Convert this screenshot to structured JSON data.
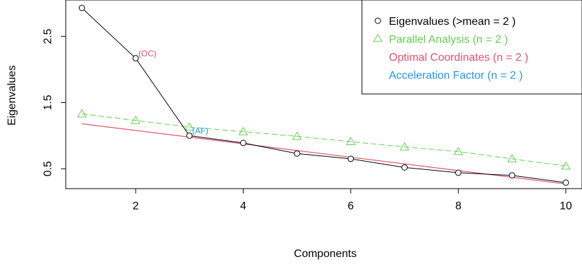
{
  "chart_data": {
    "type": "scatter",
    "xlabel": "Components",
    "ylabel": "Eigenvalues",
    "xlim": [
      0.7,
      10.3
    ],
    "ylim": [
      0.2,
      3.05
    ],
    "xticks": [
      "2",
      "4",
      "6",
      "8",
      "10"
    ],
    "yticks": [
      "0.5",
      "1.5",
      "2.5"
    ],
    "series": [
      {
        "name": "Eigenvalues (>mean  =  2 )",
        "marker": "circle",
        "color": "#000000",
        "x": [
          1,
          2,
          3,
          4,
          5,
          6,
          7,
          8,
          9,
          10
        ],
        "values": [
          2.93,
          2.17,
          1.0,
          0.89,
          0.73,
          0.65,
          0.52,
          0.44,
          0.4,
          0.29
        ]
      },
      {
        "name": "Parallel Analysis (n =  2 )",
        "marker": "triangle",
        "color": "#61D04F",
        "x": [
          1,
          2,
          3,
          4,
          5,
          6,
          7,
          8,
          9,
          10
        ],
        "values": [
          1.33,
          1.23,
          1.13,
          1.06,
          0.99,
          0.91,
          0.83,
          0.76,
          0.65,
          0.54
        ]
      },
      {
        "name": "Optimal Coordinates (n =  2 )",
        "marker": "none",
        "color": "#DF536B",
        "line": {
          "x": [
            1,
            10
          ],
          "values": [
            1.18,
            0.27
          ]
        }
      },
      {
        "name": "Acceleration Factor (n =  2 )",
        "marker": "none",
        "color": "#2297E6"
      }
    ],
    "annotations": [
      {
        "text": "(OC)",
        "x": 2,
        "y": 2.17,
        "color": "#DF536B"
      },
      {
        "text": "(AF)",
        "x": 3,
        "y": 1.0,
        "color": "#2297E6"
      }
    ],
    "legend": {
      "position": "top-right"
    },
    "grid": false
  }
}
